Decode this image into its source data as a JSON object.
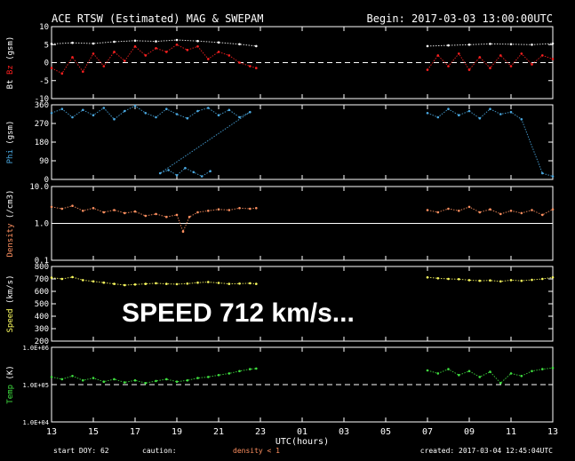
{
  "header": {
    "title": "ACE RTSW (Estimated) MAG & SWEPAM",
    "begin": "Begin: 2017-03-03 13:00:00UTC"
  },
  "overlay": {
    "text": "SPEED 712 km/s..."
  },
  "footer": {
    "start_doy": "start DOY:  62",
    "caution": "caution:",
    "density_note": "density < 1",
    "created": "created: 2017-03-04 12:45:04UTC"
  },
  "colors": {
    "bt": "#ffffff",
    "bz": "#ff2020",
    "phi": "#4aa8e0",
    "density": "#ff9060",
    "speed": "#ffff60",
    "temp": "#40e040",
    "axis": "#ffffff",
    "density_note": "#ff9060"
  },
  "chart_data": {
    "type": "scatter",
    "x_label": "UTC(hours)",
    "x_ticks": [
      "13",
      "15",
      "17",
      "19",
      "21",
      "23",
      "01",
      "03",
      "05",
      "07",
      "09",
      "11",
      "13"
    ],
    "gap_hours": [
      10.0,
      17.9
    ],
    "panels": [
      {
        "id": "mag",
        "ylabel_parts": [
          {
            "text": "Bt",
            "color": "#ffffff"
          },
          {
            "text": "Bz",
            "color": "#ff2020"
          },
          {
            "text": "(gsm)",
            "color": "#ffffff"
          }
        ],
        "scale": "linear",
        "ylim": [
          -10,
          10
        ],
        "ticks": [
          "10",
          "5",
          "0",
          "-5",
          "-10"
        ],
        "tick_values": [
          10,
          5,
          0,
          -5,
          -10
        ],
        "dashed_line": 0,
        "series": [
          {
            "name": "Bt",
            "color": "#ffffff",
            "points": [
              [
                0,
                5.2
              ],
              [
                1,
                5.5
              ],
              [
                2,
                5.3
              ],
              [
                3,
                5.8
              ],
              [
                4,
                6.1
              ],
              [
                5,
                5.9
              ],
              [
                6,
                6.3
              ],
              [
                7,
                6.0
              ],
              [
                8,
                5.6
              ],
              [
                9,
                5.1
              ],
              [
                9.8,
                4.6
              ],
              [
                18,
                4.6
              ],
              [
                19,
                4.8
              ],
              [
                20,
                5.0
              ],
              [
                21,
                5.2
              ],
              [
                22,
                5.1
              ],
              [
                23,
                5.0
              ],
              [
                24,
                5.3
              ]
            ]
          },
          {
            "name": "Bz",
            "color": "#ff2020",
            "points": [
              [
                0,
                -1.5
              ],
              [
                0.5,
                -3
              ],
              [
                1,
                1.5
              ],
              [
                1.5,
                -2.5
              ],
              [
                2,
                2.5
              ],
              [
                2.5,
                -1
              ],
              [
                3,
                3
              ],
              [
                3.5,
                0.5
              ],
              [
                4,
                4.5
              ],
              [
                4.5,
                2
              ],
              [
                5,
                4
              ],
              [
                5.5,
                3
              ],
              [
                6,
                5
              ],
              [
                6.5,
                3.5
              ],
              [
                7,
                4.5
              ],
              [
                7.5,
                1
              ],
              [
                8,
                3
              ],
              [
                8.5,
                2
              ],
              [
                9,
                0
              ],
              [
                9.5,
                -1
              ],
              [
                9.8,
                -1.5
              ],
              [
                18,
                -2
              ],
              [
                18.5,
                2
              ],
              [
                19,
                -1
              ],
              [
                19.5,
                2.5
              ],
              [
                20,
                -2
              ],
              [
                20.5,
                1.5
              ],
              [
                21,
                -1.5
              ],
              [
                21.5,
                2
              ],
              [
                22,
                -1
              ],
              [
                22.5,
                2.5
              ],
              [
                23,
                -0.5
              ],
              [
                23.5,
                2
              ],
              [
                24,
                1
              ]
            ]
          }
        ]
      },
      {
        "id": "phi",
        "ylabel_parts": [
          {
            "text": "Phi",
            "color": "#4aa8e0"
          },
          {
            "text": "(gsm)",
            "color": "#ffffff"
          }
        ],
        "scale": "linear",
        "ylim": [
          0,
          360
        ],
        "ticks": [
          "360",
          "270",
          "180",
          "90",
          "0"
        ],
        "tick_values": [
          360,
          270,
          180,
          90,
          0
        ],
        "dashed_line": null,
        "series": [
          {
            "name": "Phi",
            "color": "#4aa8e0",
            "points": [
              [
                0,
                320
              ],
              [
                0.5,
                340
              ],
              [
                1,
                300
              ],
              [
                1.5,
                335
              ],
              [
                2,
                310
              ],
              [
                2.5,
                345
              ],
              [
                3,
                290
              ],
              [
                3.5,
                330
              ],
              [
                4,
                355
              ],
              [
                4.5,
                320
              ],
              [
                5,
                300
              ],
              [
                5.5,
                340
              ],
              [
                6,
                315
              ],
              [
                6.5,
                295
              ],
              [
                7,
                330
              ],
              [
                7.5,
                345
              ],
              [
                8,
                310
              ],
              [
                8.5,
                335
              ],
              [
                9,
                300
              ],
              [
                9.5,
                325
              ],
              [
                5.2,
                30
              ],
              [
                5.6,
                45
              ],
              [
                6,
                20
              ],
              [
                6.4,
                55
              ],
              [
                6.8,
                35
              ],
              [
                7.2,
                15
              ],
              [
                7.6,
                40
              ],
              [
                18,
                320
              ],
              [
                18.5,
                300
              ],
              [
                19,
                340
              ],
              [
                19.5,
                310
              ],
              [
                20,
                330
              ],
              [
                20.5,
                295
              ],
              [
                21,
                340
              ],
              [
                21.5,
                315
              ],
              [
                22,
                325
              ],
              [
                22.5,
                290
              ],
              [
                23.5,
                30
              ],
              [
                24,
                15
              ]
            ]
          }
        ]
      },
      {
        "id": "density",
        "ylabel_parts": [
          {
            "text": "Density",
            "color": "#ff9060"
          },
          {
            "text": "(/cm3)",
            "color": "#ffffff"
          }
        ],
        "scale": "log",
        "ylim": [
          0.1,
          10
        ],
        "ticks": [
          "10.0",
          "1.0",
          "0.1"
        ],
        "tick_values": [
          10,
          1,
          0.1
        ],
        "dashed_line": null,
        "solid_line": 1,
        "series": [
          {
            "name": "Density",
            "color": "#ff9060",
            "points": [
              [
                0,
                2.8
              ],
              [
                0.5,
                2.5
              ],
              [
                1,
                3.0
              ],
              [
                1.5,
                2.2
              ],
              [
                2,
                2.6
              ],
              [
                2.5,
                2.0
              ],
              [
                3,
                2.3
              ],
              [
                3.5,
                1.9
              ],
              [
                4,
                2.1
              ],
              [
                4.5,
                1.6
              ],
              [
                5,
                1.8
              ],
              [
                5.5,
                1.5
              ],
              [
                6,
                1.7
              ],
              [
                6.3,
                0.6
              ],
              [
                6.6,
                1.5
              ],
              [
                7,
                2.0
              ],
              [
                7.5,
                2.2
              ],
              [
                8,
                2.4
              ],
              [
                8.5,
                2.3
              ],
              [
                9,
                2.6
              ],
              [
                9.5,
                2.5
              ],
              [
                9.8,
                2.6
              ],
              [
                18,
                2.3
              ],
              [
                18.5,
                2.0
              ],
              [
                19,
                2.5
              ],
              [
                19.5,
                2.2
              ],
              [
                20,
                2.8
              ],
              [
                20.5,
                2.0
              ],
              [
                21,
                2.4
              ],
              [
                21.5,
                1.8
              ],
              [
                22,
                2.2
              ],
              [
                22.5,
                1.9
              ],
              [
                23,
                2.3
              ],
              [
                23.5,
                1.7
              ],
              [
                24,
                2.4
              ]
            ]
          }
        ]
      },
      {
        "id": "speed",
        "ylabel_parts": [
          {
            "text": "Speed",
            "color": "#ffff60"
          },
          {
            "text": "(km/s)",
            "color": "#ffffff"
          }
        ],
        "scale": "linear",
        "ylim": [
          200,
          800
        ],
        "ticks": [
          "800",
          "700",
          "600",
          "500",
          "400",
          "300",
          "200"
        ],
        "tick_values": [
          800,
          700,
          600,
          500,
          400,
          300,
          200
        ],
        "dashed_line": null,
        "series": [
          {
            "name": "Speed",
            "color": "#ffff60",
            "points": [
              [
                0,
                710
              ],
              [
                0.5,
                700
              ],
              [
                1,
                715
              ],
              [
                1.5,
                690
              ],
              [
                2,
                680
              ],
              [
                2.5,
                670
              ],
              [
                3,
                660
              ],
              [
                3.5,
                650
              ],
              [
                4,
                655
              ],
              [
                4.5,
                660
              ],
              [
                5,
                665
              ],
              [
                5.5,
                660
              ],
              [
                6,
                658
              ],
              [
                6.5,
                662
              ],
              [
                7,
                670
              ],
              [
                7.5,
                675
              ],
              [
                8,
                668
              ],
              [
                8.5,
                660
              ],
              [
                9,
                662
              ],
              [
                9.5,
                665
              ],
              [
                9.8,
                660
              ],
              [
                18,
                712
              ],
              [
                18.5,
                705
              ],
              [
                19,
                700
              ],
              [
                19.5,
                698
              ],
              [
                20,
                690
              ],
              [
                20.5,
                685
              ],
              [
                21,
                688
              ],
              [
                21.5,
                680
              ],
              [
                22,
                690
              ],
              [
                22.5,
                685
              ],
              [
                23,
                692
              ],
              [
                23.5,
                700
              ],
              [
                24,
                712
              ]
            ]
          }
        ]
      },
      {
        "id": "temp",
        "ylabel_parts": [
          {
            "text": "Temp",
            "color": "#40e040"
          },
          {
            "text": "(K)",
            "color": "#ffffff"
          }
        ],
        "scale": "log",
        "ylim": [
          10000,
          1000000
        ],
        "ticks": [
          "1.0E+06",
          "1.0E+05",
          "1.0E+04"
        ],
        "tick_values": [
          1000000,
          100000,
          10000
        ],
        "dashed_line": 100000,
        "series": [
          {
            "name": "Temp",
            "color": "#40e040",
            "points": [
              [
                0,
                160000
              ],
              [
                0.5,
                140000
              ],
              [
                1,
                170000
              ],
              [
                1.5,
                130000
              ],
              [
                2,
                150000
              ],
              [
                2.5,
                120000
              ],
              [
                3,
                140000
              ],
              [
                3.5,
                115000
              ],
              [
                4,
                130000
              ],
              [
                4.5,
                110000
              ],
              [
                5,
                125000
              ],
              [
                5.5,
                140000
              ],
              [
                6,
                120000
              ],
              [
                6.5,
                130000
              ],
              [
                7,
                150000
              ],
              [
                7.5,
                160000
              ],
              [
                8,
                180000
              ],
              [
                8.5,
                200000
              ],
              [
                9,
                230000
              ],
              [
                9.5,
                260000
              ],
              [
                9.8,
                270000
              ],
              [
                18,
                240000
              ],
              [
                18.5,
                200000
              ],
              [
                19,
                260000
              ],
              [
                19.5,
                180000
              ],
              [
                20,
                230000
              ],
              [
                20.5,
                160000
              ],
              [
                21,
                220000
              ],
              [
                21.5,
                110000
              ],
              [
                22,
                200000
              ],
              [
                22.5,
                170000
              ],
              [
                23,
                230000
              ],
              [
                23.5,
                260000
              ],
              [
                24,
                280000
              ]
            ]
          }
        ]
      }
    ]
  }
}
